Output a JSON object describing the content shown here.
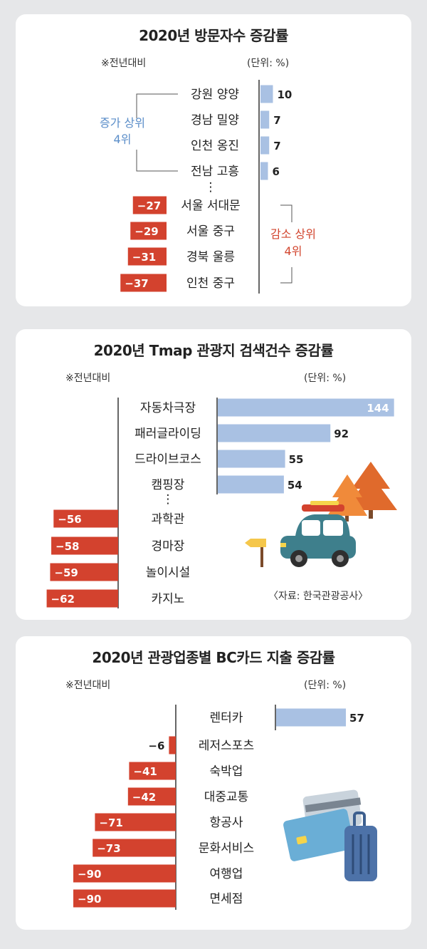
{
  "colors": {
    "positive": "#a9c1e3",
    "positive_stroke": "#7fa2d3",
    "negative": "#d3422e",
    "axis": "#333333",
    "increase_label": "#5b8ec9",
    "decrease_label": "#d2452e"
  },
  "chart_data": [
    {
      "type": "bar",
      "title": "2020년 방문자수 증감률",
      "note": "※전년대비",
      "unit": "(단위: %)",
      "categories": [
        "강원 양양",
        "경남 밀양",
        "인천 옹진",
        "전남 고흥",
        "서울 서대문",
        "서울 중구",
        "경북 울릉",
        "인천 중구"
      ],
      "values": [
        10,
        7,
        7,
        6,
        -27,
        -29,
        -31,
        -37
      ],
      "value_labels": [
        "10",
        "7",
        "7",
        "6",
        "−27",
        "−29",
        "−31",
        "−37"
      ],
      "gap_after_index": 3,
      "gap_marker": "⋮",
      "group_labels": {
        "increase": [
          "증가 상위",
          "4위"
        ],
        "decrease": [
          "감소 상위",
          "4위"
        ]
      }
    },
    {
      "type": "bar",
      "title": "2020년 Tmap 관광지 검색건수 증감률",
      "note": "※전년대비",
      "unit": "(단위: %)",
      "categories": [
        "자동차극장",
        "패러글라이딩",
        "드라이브코스",
        "캠핑장",
        "과학관",
        "경마장",
        "놀이시설",
        "카지노"
      ],
      "values": [
        144,
        92,
        55,
        54,
        -56,
        -58,
        -59,
        -62
      ],
      "value_labels": [
        "144",
        "92",
        "55",
        "54",
        "−56",
        "−58",
        "−59",
        "−62"
      ],
      "gap_after_index": 3,
      "gap_marker": "⋮",
      "source": "〈자료: 한국관광공사〉"
    },
    {
      "type": "bar",
      "title": "2020년 관광업종별 BC카드 지출 증감률",
      "note": "※전년대비",
      "unit": "(단위: %)",
      "categories": [
        "렌터카",
        "레저스포츠",
        "숙박업",
        "대중교통",
        "항공사",
        "문화서비스",
        "여행업",
        "면세점"
      ],
      "values": [
        57,
        -6,
        -41,
        -42,
        -71,
        -73,
        -90,
        -90
      ],
      "value_labels": [
        "57",
        "−6",
        "−41",
        "−42",
        "−71",
        "−73",
        "−90",
        "−90"
      ]
    }
  ],
  "illustrations": [
    "car-with-trees-icon",
    "credit-cards-luggage-icon",
    "signpost-icon"
  ]
}
